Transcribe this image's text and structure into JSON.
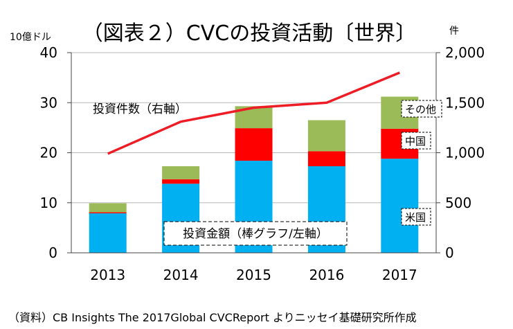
{
  "chart_data": {
    "type": "bar",
    "title": "（図表２）CVCの投資活動〔世界〕",
    "left_axis": {
      "unit": "10億ドル",
      "ylim": [
        0,
        40
      ],
      "ticks": [
        "0",
        "10",
        "20",
        "30",
        "40"
      ]
    },
    "right_axis": {
      "unit": "件",
      "ylim": [
        0,
        2000
      ],
      "ticks": [
        "0",
        "500",
        "1,000",
        "1,500",
        "2,000"
      ]
    },
    "categories": [
      "2013",
      "2014",
      "2015",
      "2016",
      "2017"
    ],
    "stacked": true,
    "series": [
      {
        "name": "米国",
        "color": "#00b0f0",
        "values": [
          7.9,
          13.8,
          18.4,
          17.3,
          18.8
        ]
      },
      {
        "name": "中国",
        "color": "#ff0000",
        "values": [
          0.2,
          0.9,
          6.5,
          3.0,
          6.0
        ]
      },
      {
        "name": "その他",
        "color": "#9bbb59",
        "values": [
          1.8,
          2.6,
          4.4,
          6.2,
          6.4
        ]
      }
    ],
    "line_series": {
      "name": "投資件数（右軸）",
      "color": "#ee1c25",
      "axis": "right",
      "values": [
        990,
        1310,
        1450,
        1500,
        1800
      ]
    },
    "annotations": {
      "bar_label": "投資金額（棒グラフ/左軸）",
      "line_label": "投資件数（右軸）"
    },
    "grid": true,
    "source": "（資料）CB Insights The 2017Global CVCReport よりニッセイ基礎研究所作成"
  }
}
